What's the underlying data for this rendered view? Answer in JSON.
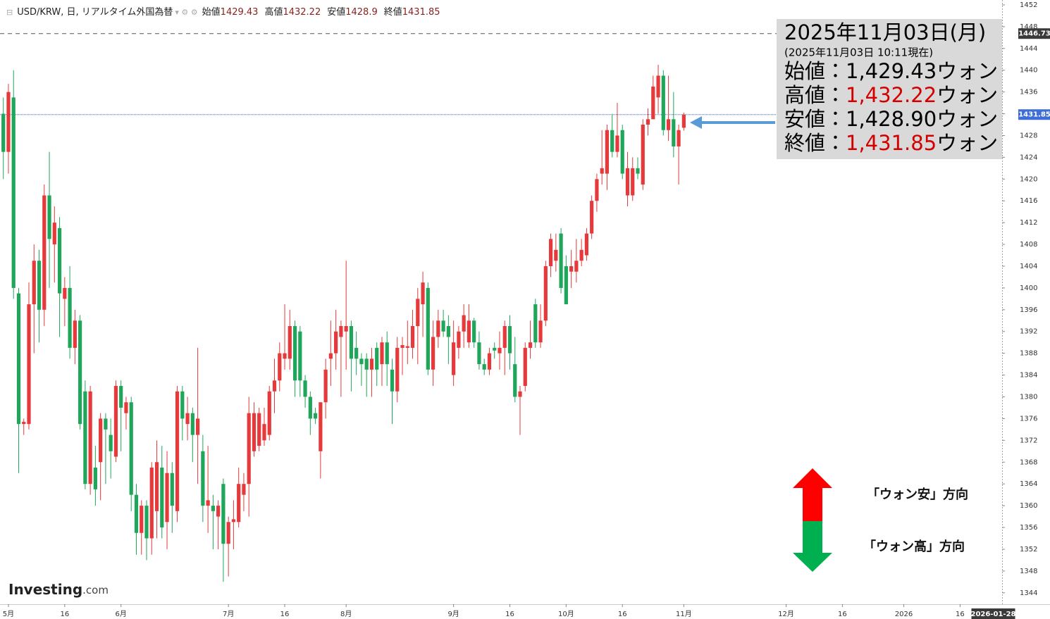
{
  "chart_data": {
    "type": "candlestick",
    "title": "USD/KRW, 日, リアルタイム外国為替",
    "header_ohlc": [
      {
        "label": "始値",
        "value": 1429.43
      },
      {
        "label": "高値",
        "value": 1432.22
      },
      {
        "label": "安値",
        "value": 1428.9
      },
      {
        "label": "終値",
        "value": 1431.85
      }
    ],
    "x": [
      "2025-04-30",
      "2025-05-01",
      "2025-05-02",
      "2025-05-05",
      "2025-05-06",
      "2025-05-07",
      "2025-05-08",
      "2025-05-09",
      "2025-05-12",
      "2025-05-13",
      "2025-05-14",
      "2025-05-15",
      "2025-05-16",
      "2025-05-19",
      "2025-05-20",
      "2025-05-21",
      "2025-05-22",
      "2025-05-23",
      "2025-05-26",
      "2025-05-27",
      "2025-05-28",
      "2025-05-29",
      "2025-05-30",
      "2025-06-02",
      "2025-06-03",
      "2025-06-04",
      "2025-06-05",
      "2025-06-06",
      "2025-06-09",
      "2025-06-10",
      "2025-06-11",
      "2025-06-12",
      "2025-06-13",
      "2025-06-16",
      "2025-06-17",
      "2025-06-18",
      "2025-06-19",
      "2025-06-20",
      "2025-06-23",
      "2025-06-24",
      "2025-06-25",
      "2025-06-26",
      "2025-06-27",
      "2025-06-30",
      "2025-07-01",
      "2025-07-02",
      "2025-07-03",
      "2025-07-04",
      "2025-07-07",
      "2025-07-08",
      "2025-07-09",
      "2025-07-10",
      "2025-07-11",
      "2025-07-14",
      "2025-07-15",
      "2025-07-16",
      "2025-07-17",
      "2025-07-18",
      "2025-07-21",
      "2025-07-22",
      "2025-07-23",
      "2025-07-24",
      "2025-07-25",
      "2025-07-28",
      "2025-07-29",
      "2025-07-30",
      "2025-07-31",
      "2025-08-01",
      "2025-08-04",
      "2025-08-05",
      "2025-08-06",
      "2025-08-07",
      "2025-08-08",
      "2025-08-11",
      "2025-08-12",
      "2025-08-13",
      "2025-08-14",
      "2025-08-15",
      "2025-08-18",
      "2025-08-19",
      "2025-08-20",
      "2025-08-21",
      "2025-08-22",
      "2025-08-25",
      "2025-08-26",
      "2025-08-27",
      "2025-08-28",
      "2025-08-29",
      "2025-09-01",
      "2025-09-02",
      "2025-09-03",
      "2025-09-04",
      "2025-09-05",
      "2025-09-08",
      "2025-09-09",
      "2025-09-10",
      "2025-09-11",
      "2025-09-12",
      "2025-09-15",
      "2025-09-16",
      "2025-09-17",
      "2025-09-18",
      "2025-09-19",
      "2025-09-22",
      "2025-09-23",
      "2025-09-24",
      "2025-09-25",
      "2025-09-26",
      "2025-09-29",
      "2025-09-30",
      "2025-10-01",
      "2025-10-02",
      "2025-10-03",
      "2025-10-06",
      "2025-10-07",
      "2025-10-08",
      "2025-10-09",
      "2025-10-10",
      "2025-10-13",
      "2025-10-14",
      "2025-10-15",
      "2025-10-16",
      "2025-10-17",
      "2025-10-20",
      "2025-10-21",
      "2025-10-22",
      "2025-10-23",
      "2025-10-24",
      "2025-10-27",
      "2025-10-28",
      "2025-10-29",
      "2025-10-30",
      "2025-10-31",
      "2025-11-03"
    ],
    "open": [
      1432,
      1425,
      1435,
      1399,
      1375,
      1375,
      1397,
      1405,
      1396,
      1417,
      1408,
      1411,
      1398,
      1400,
      1389,
      1394,
      1381,
      1364,
      1367,
      1368,
      1376,
      1373,
      1369,
      1382,
      1377,
      1379,
      1362,
      1355,
      1360,
      1354,
      1359,
      1367,
      1357,
      1366,
      1359,
      1381,
      1375,
      1377,
      1373,
      1370,
      1360,
      1360,
      1358,
      1364,
      1353,
      1357,
      1357,
      1362,
      1364,
      1370,
      1371,
      1372,
      1373,
      1381,
      1383,
      1387,
      1387,
      1393,
      1392,
      1383,
      1380,
      1377,
      1370,
      1379,
      1387,
      1388,
      1391,
      1392,
      1393,
      1389,
      1387,
      1387,
      1385,
      1389,
      1386,
      1390,
      1385,
      1381,
      1389,
      1389,
      1389,
      1393,
      1397,
      1400,
      1385,
      1391,
      1394,
      1393,
      1384,
      1389,
      1392,
      1390,
      1394,
      1390,
      1386,
      1385,
      1389,
      1388,
      1389,
      1393,
      1386,
      1380,
      1382,
      1389,
      1397,
      1390,
      1394,
      1404,
      1405,
      1410,
      1404,
      1403,
      1403,
      1405,
      1406,
      1410,
      1416,
      1421,
      1421,
      1429,
      1425,
      1429,
      1417,
      1417,
      1422,
      1419,
      1430,
      1431,
      1435,
      1439,
      1429,
      1431,
      1426,
      1429.43
    ],
    "high": [
      1435,
      1437.5,
      1440,
      1400,
      1376,
      1401,
      1408,
      1407,
      1419,
      1425,
      1415,
      1413,
      1402,
      1404,
      1396,
      1395,
      1383,
      1382,
      1371,
      1377,
      1377,
      1376,
      1383,
      1383,
      1380,
      1380,
      1364,
      1361,
      1361,
      1368,
      1372,
      1371,
      1370,
      1368,
      1382,
      1382,
      1380,
      1378,
      1389,
      1373,
      1371,
      1362,
      1361,
      1365,
      1358,
      1361,
      1367,
      1366,
      1380,
      1379,
      1378,
      1378,
      1382,
      1387,
      1390,
      1397,
      1396,
      1394,
      1393,
      1384,
      1381,
      1378,
      1379,
      1387,
      1394,
      1396,
      1394,
      1405,
      1394,
      1392,
      1388,
      1388,
      1389,
      1390,
      1391,
      1392,
      1387,
      1391,
      1391,
      1394,
      1396,
      1400,
      1403,
      1401,
      1394,
      1396,
      1396,
      1395,
      1394,
      1393,
      1397,
      1397,
      1394.5,
      1392,
      1387,
      1389,
      1390,
      1392,
      1394,
      1395,
      1391,
      1382,
      1390,
      1394,
      1398,
      1397,
      1405,
      1410,
      1410,
      1411,
      1406,
      1407,
      1409,
      1409,
      1411,
      1417,
      1421,
      1429,
      1430,
      1432,
      1434,
      1430,
      1425,
      1424,
      1424,
      1431,
      1433,
      1439,
      1441,
      1440,
      1439,
      1436,
      1430,
      1432.22
    ],
    "low": [
      1420,
      1421,
      1398,
      1366,
      1373,
      1374,
      1388,
      1390,
      1393,
      1400,
      1401,
      1391,
      1393,
      1387,
      1386,
      1374,
      1363,
      1362,
      1360,
      1361,
      1364,
      1365,
      1368,
      1370,
      1374,
      1359,
      1351,
      1351,
      1350,
      1351,
      1354,
      1354,
      1352,
      1355,
      1357,
      1372,
      1372,
      1368,
      1364,
      1357,
      1355,
      1352,
      1352,
      1346,
      1347,
      1352,
      1356,
      1359,
      1358,
      1369,
      1370,
      1371,
      1372,
      1377,
      1381,
      1385,
      1385,
      1380,
      1380,
      1378,
      1373,
      1375,
      1365,
      1376,
      1382,
      1385,
      1380,
      1385,
      1381,
      1384,
      1382,
      1380,
      1380,
      1382,
      1382,
      1382,
      1375,
      1379,
      1384,
      1386,
      1387,
      1386,
      1391,
      1384,
      1382,
      1389,
      1391,
      1386,
      1382,
      1387,
      1389,
      1389,
      1389,
      1385,
      1384,
      1384,
      1387,
      1385,
      1384,
      1385,
      1379,
      1373,
      1381,
      1387,
      1389,
      1389,
      1393,
      1402,
      1403,
      1399,
      1397,
      1400,
      1401,
      1404,
      1405,
      1409,
      1414,
      1419,
      1418,
      1424,
      1424,
      1420,
      1415,
      1416,
      1420,
      1418,
      1428,
      1431,
      1432,
      1428,
      1427,
      1424,
      1419,
      1428.9
    ],
    "close": [
      1425,
      1436,
      1400,
      1375,
      1375.4,
      1397,
      1405,
      1396,
      1417,
      1409,
      1412,
      1399,
      1400,
      1389,
      1394,
      1375,
      1364,
      1381,
      1363,
      1376,
      1374,
      1370,
      1382,
      1378,
      1379,
      1362,
      1355,
      1360,
      1354,
      1367,
      1368,
      1356,
      1366,
      1360,
      1381,
      1376,
      1377,
      1373,
      1376,
      1360,
      1361,
      1359,
      1360,
      1353,
      1357,
      1357.5,
      1364,
      1364,
      1377,
      1377,
      1377,
      1375,
      1381,
      1383,
      1388,
      1388,
      1393,
      1383,
      1383,
      1380,
      1376,
      1376,
      1379,
      1385,
      1388,
      1392,
      1393,
      1393,
      1387,
      1387,
      1386,
      1385,
      1387,
      1385,
      1390,
      1386,
      1381,
      1389,
      1389.5,
      1389.3,
      1393,
      1398,
      1401,
      1385,
      1391,
      1394,
      1392,
      1391,
      1390,
      1392,
      1395,
      1394,
      1390,
      1386,
      1385,
      1388,
      1388.5,
      1389,
      1393,
      1388,
      1380,
      1381,
      1389,
      1390,
      1390,
      1394,
      1404,
      1409,
      1407,
      1400,
      1397,
      1404,
      1405,
      1407,
      1410,
      1416,
      1420,
      1422,
      1429,
      1425,
      1428,
      1421,
      1422,
      1422,
      1421,
      1430,
      1431,
      1437,
      1439,
      1429,
      1431,
      1426,
      1429,
      1431.85
    ],
    "up_color": "#e5393b",
    "down_color": "#1fa65a",
    "xlim": [
      "2025-04-30",
      "2026-01-28"
    ],
    "xticks": [
      {
        "value": "2025-05-01",
        "label": "5月"
      },
      {
        "value": "2025-05-16",
        "label": "16"
      },
      {
        "value": "2025-06-02",
        "label": "6月"
      },
      {
        "value": "2025-07-01",
        "label": "7月"
      },
      {
        "value": "2025-07-16",
        "label": "16"
      },
      {
        "value": "2025-08-01",
        "label": "8月"
      },
      {
        "value": "2025-09-01",
        "label": "9月"
      },
      {
        "value": "2025-09-16",
        "label": "16"
      },
      {
        "value": "2025-10-01",
        "label": "10月"
      },
      {
        "value": "2025-10-16",
        "label": "16"
      },
      {
        "value": "2025-11-03",
        "label": "11月"
      },
      {
        "value": "2025-12-01",
        "label": "12月"
      },
      {
        "value": "2025-12-16",
        "label": "16"
      },
      {
        "value": "2026-01-01",
        "label": "2026"
      },
      {
        "value": "2026-01-16",
        "label": "16"
      }
    ],
    "crosshair_x": "2026-01-28",
    "ylim": [
      1341.9,
      1452.9
    ],
    "yticks": [
      1344,
      1348,
      1352,
      1356,
      1360,
      1364,
      1368,
      1372,
      1376,
      1380,
      1384,
      1388,
      1392,
      1396,
      1400,
      1404,
      1408,
      1412,
      1416,
      1420,
      1424,
      1428,
      1432,
      1436,
      1440,
      1444,
      1448,
      1452
    ],
    "price_lines": [
      {
        "value": 1446.73,
        "color": "#555555",
        "label_bg": "#3a3a3a"
      },
      {
        "value": 1431.85,
        "color": "#2f5fd0",
        "label_bg": "#3e6fd8"
      }
    ],
    "info_box": {
      "date": "2025年11月03日(月)",
      "asof": "(2025年11月03日 10:11現在)",
      "rows": [
        {
          "label": "始値：",
          "value": "1,429.43",
          "unit": "ウォン",
          "color": "#000000"
        },
        {
          "label": "高値：",
          "value": "1,432.22",
          "unit": "ウォン",
          "color": "#d40000"
        },
        {
          "label": "安値：",
          "value": "1,428.90",
          "unit": "ウォン",
          "color": "#000000"
        },
        {
          "label": "終値：",
          "value": "1,431.85",
          "unit": "ウォン",
          "color": "#d40000"
        }
      ]
    },
    "annotations": [
      "「ウォン安」方向",
      "「ウォン高」方向"
    ],
    "logo": {
      "brand": "Investing",
      "suffix": ".com"
    }
  }
}
